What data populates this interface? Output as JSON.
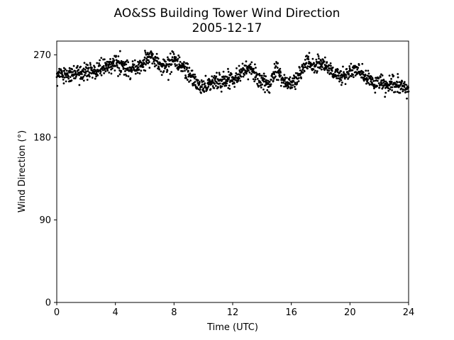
{
  "chart_data": {
    "type": "scatter",
    "title": "AO&SS Building Tower Wind Direction",
    "subtitle": "2005-12-17",
    "xlabel": "Time (UTC)",
    "ylabel": "Wind Direction (°)",
    "xlim": [
      0,
      24
    ],
    "ylim": [
      0,
      285
    ],
    "xticks": [
      0,
      4,
      8,
      12,
      16,
      20,
      24
    ],
    "xtick_labels": [
      "0",
      "4",
      "8",
      "12",
      "16",
      "20",
      "24"
    ],
    "yticks": [
      0,
      90,
      180,
      270
    ],
    "ytick_labels": [
      "0",
      "90",
      "180",
      "270"
    ],
    "grid": false,
    "marker_color": "#000000",
    "trend": {
      "x": [
        0,
        0.5,
        1,
        1.5,
        2,
        2.5,
        3,
        3.5,
        4,
        4.5,
        5,
        5.5,
        6,
        6.5,
        7,
        7.5,
        8,
        8.5,
        9,
        9.5,
        10,
        10.5,
        11,
        11.5,
        12,
        12.5,
        13,
        13.5,
        14,
        14.5,
        15,
        15.5,
        16,
        16.5,
        17,
        17.5,
        18,
        18.5,
        19,
        19.5,
        20,
        20.5,
        21,
        21.5,
        22,
        22.5,
        23,
        23.5,
        24
      ],
      "y": [
        251,
        249,
        249,
        250,
        251,
        253,
        255,
        258,
        262,
        256,
        253,
        257,
        263,
        268,
        258,
        258,
        264,
        258,
        249,
        239,
        236,
        239,
        241,
        242,
        245,
        249,
        256,
        250,
        239,
        237,
        258,
        240,
        238,
        246,
        262,
        258,
        262,
        256,
        249,
        246,
        252,
        253,
        246,
        240,
        240,
        235,
        238,
        235,
        232
      ]
    },
    "spread": 4.5,
    "point_count": 1400
  }
}
